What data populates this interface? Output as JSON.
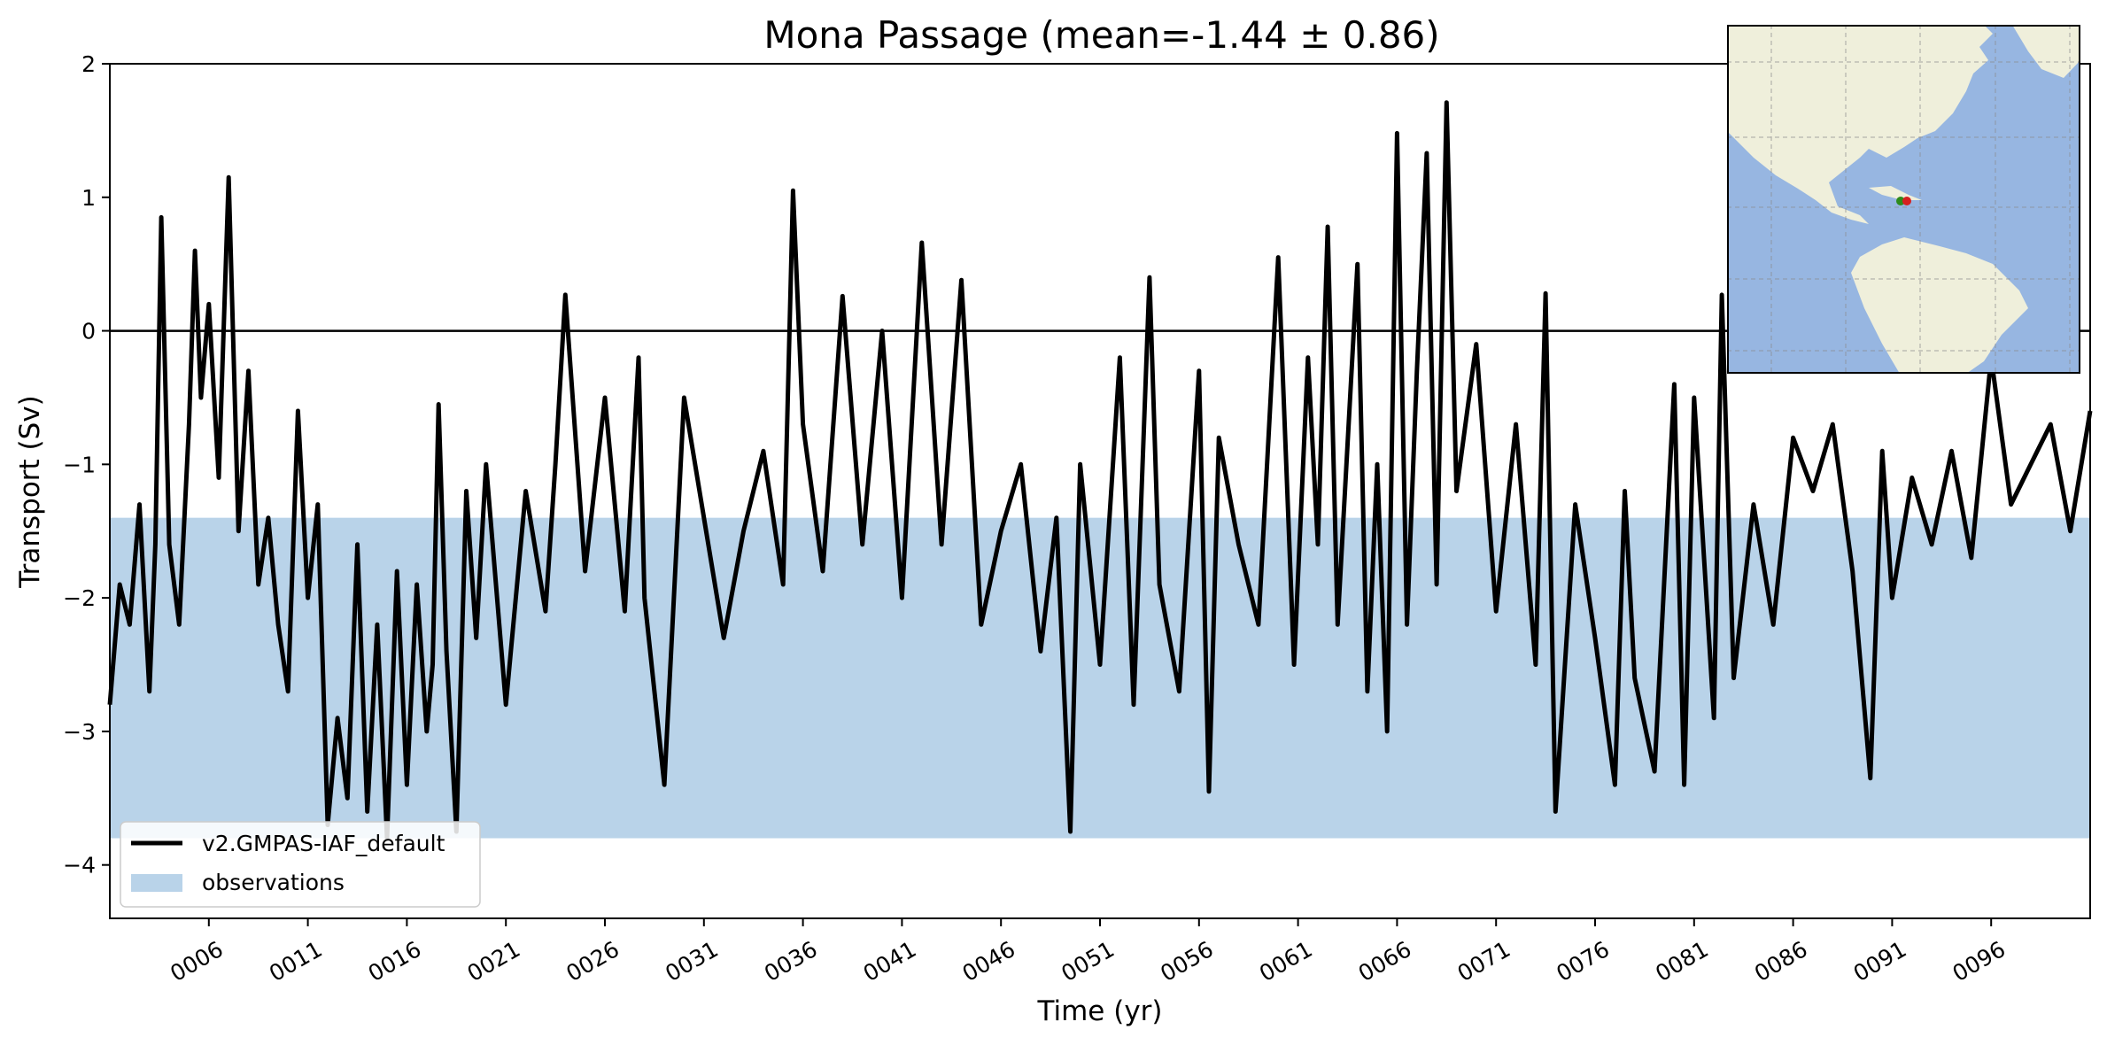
{
  "chart_data": {
    "type": "line",
    "title": "Mona Passage (mean=-1.44 ± 0.86)",
    "xlabel": "Time (yr)",
    "ylabel": "Transport (Sv)",
    "xlim": [
      1,
      101
    ],
    "ylim": [
      -4.4,
      2.0
    ],
    "xticks": [
      6,
      11,
      16,
      21,
      26,
      31,
      36,
      41,
      46,
      51,
      56,
      61,
      66,
      71,
      76,
      81,
      86,
      91,
      96
    ],
    "xtick_labels": [
      "0006",
      "0011",
      "0016",
      "0021",
      "0026",
      "0031",
      "0036",
      "0041",
      "0046",
      "0051",
      "0056",
      "0061",
      "0066",
      "0071",
      "0076",
      "0081",
      "0086",
      "0091",
      "0096"
    ],
    "yticks": [
      2,
      1,
      0,
      -1,
      -2,
      -3,
      -4
    ],
    "ytick_labels": [
      "2",
      "1",
      "0",
      "−1",
      "−2",
      "−3",
      "−4"
    ],
    "zero_line": 0,
    "observations_band": {
      "name": "observations",
      "ymin": -3.8,
      "ymax": -1.4,
      "color": "#b9d3e9"
    },
    "legend": {
      "placement": "lower-left",
      "entries": [
        "v2.GMPAS-IAF_default",
        "observations"
      ]
    },
    "series": [
      {
        "name": "v2.GMPAS-IAF_default",
        "color": "#000000",
        "x": [
          1.0,
          1.5,
          2.0,
          2.5,
          3.0,
          3.3,
          3.6,
          4.0,
          4.5,
          5.0,
          5.3,
          5.6,
          6.0,
          6.5,
          7.0,
          7.5,
          8.0,
          8.5,
          9.0,
          9.5,
          10.0,
          10.5,
          11.0,
          11.5,
          12.0,
          12.5,
          13.0,
          13.5,
          14.0,
          14.5,
          15.0,
          15.5,
          16.0,
          16.5,
          17.0,
          17.3,
          17.6,
          18.0,
          18.5,
          19.0,
          19.5,
          20.0,
          21.0,
          22.0,
          23.0,
          23.5,
          24.0,
          25.0,
          26.0,
          27.0,
          27.7,
          28.0,
          29.0,
          30.0,
          31.0,
          32.0,
          33.0,
          34.0,
          35.0,
          35.5,
          36.0,
          37.0,
          38.0,
          39.0,
          40.0,
          41.0,
          42.0,
          43.0,
          44.0,
          45.0,
          46.0,
          47.0,
          48.0,
          48.8,
          49.5,
          50.0,
          51.0,
          52.0,
          52.7,
          53.5,
          54.0,
          55.0,
          56.0,
          56.5,
          57.0,
          58.0,
          59.0,
          60.0,
          60.8,
          61.5,
          62.0,
          62.5,
          63.0,
          64.0,
          64.5,
          65.0,
          65.5,
          66.0,
          66.5,
          67.0,
          67.5,
          68.0,
          68.5,
          69.0,
          70.0,
          71.0,
          72.0,
          73.0,
          73.5,
          74.0,
          75.0,
          76.0,
          77.0,
          77.5,
          78.0,
          79.0,
          80.0,
          80.5,
          81.0,
          82.0,
          82.4,
          83.0,
          84.0,
          85.0,
          86.0,
          87.0,
          88.0,
          89.0,
          89.9,
          90.5,
          91.0,
          92.0,
          93.0,
          94.0,
          95.0,
          96.0,
          97.0,
          98.0,
          99.0,
          100.0,
          101.0
        ],
        "y": [
          -2.8,
          -1.9,
          -2.2,
          -1.3,
          -2.7,
          -1.6,
          0.85,
          -1.6,
          -2.2,
          -0.7,
          0.6,
          -0.5,
          0.2,
          -1.1,
          1.15,
          -1.5,
          -0.3,
          -1.9,
          -1.4,
          -2.2,
          -2.7,
          -0.6,
          -2.0,
          -1.3,
          -3.7,
          -2.9,
          -3.5,
          -1.6,
          -3.6,
          -2.2,
          -3.8,
          -1.8,
          -3.4,
          -1.9,
          -3.0,
          -2.5,
          -0.55,
          -2.4,
          -3.75,
          -1.2,
          -2.3,
          -1.0,
          -2.8,
          -1.2,
          -2.1,
          -1.0,
          0.27,
          -1.8,
          -0.5,
          -2.1,
          -0.2,
          -2.0,
          -3.4,
          -0.5,
          -1.4,
          -2.3,
          -1.5,
          -0.9,
          -1.9,
          1.05,
          -0.7,
          -1.8,
          0.26,
          -1.6,
          0.0,
          -2.0,
          0.66,
          -1.6,
          0.38,
          -2.2,
          -1.5,
          -1.0,
          -2.4,
          -1.4,
          -3.75,
          -1.0,
          -2.5,
          -0.2,
          -2.8,
          0.4,
          -1.9,
          -2.7,
          -0.3,
          -3.45,
          -0.8,
          -1.6,
          -2.2,
          0.55,
          -2.5,
          -0.2,
          -1.6,
          0.78,
          -2.2,
          0.5,
          -2.7,
          -1.0,
          -3.0,
          1.48,
          -2.2,
          -0.3,
          1.33,
          -1.9,
          1.71,
          -1.2,
          -0.1,
          -2.1,
          -0.7,
          -2.5,
          0.28,
          -3.6,
          -1.3,
          -2.3,
          -3.4,
          -1.2,
          -2.6,
          -3.3,
          -0.4,
          -3.4,
          -0.5,
          -2.9,
          0.27,
          -2.6,
          -1.3,
          -2.2,
          -0.8,
          -1.2,
          -0.7,
          -1.8,
          -3.35,
          -0.9,
          -2.0,
          -1.1,
          -1.6,
          -0.9,
          -1.7,
          -0.2,
          -1.3,
          -1.0,
          -0.7,
          -1.5,
          -0.6
        ]
      }
    ]
  },
  "inset_map": {
    "land_color": "#efefdb",
    "ocean_color": "#97b6e1",
    "markers": [
      {
        "color": "#2e8b1a",
        "lon": -68.2,
        "lat": 18.3
      },
      {
        "color": "#d62020",
        "lon": -67.4,
        "lat": 18.3
      }
    ]
  }
}
